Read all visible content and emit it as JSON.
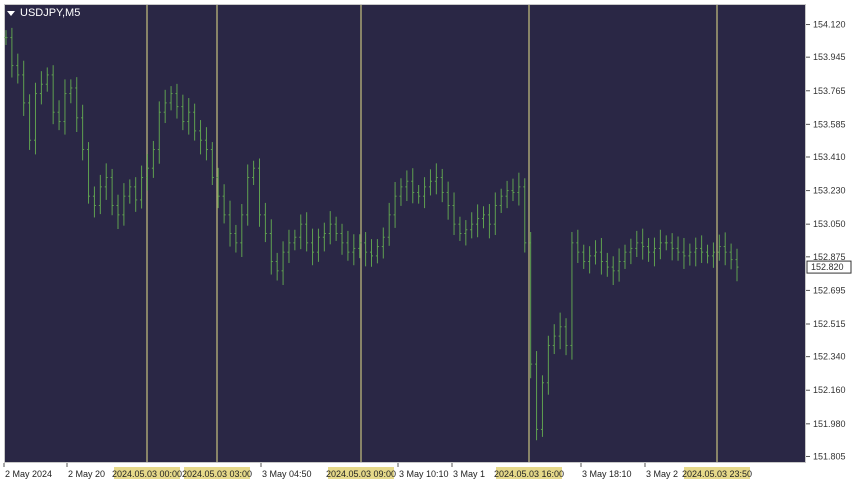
{
  "chart": {
    "symbol_label": "USDJPY,M5",
    "background": "#2a2745",
    "candle_color": "#5fa050",
    "vline_color": "#e6e28a",
    "label_bg": "#e6d98a"
  },
  "price_axis": {
    "ticks": [
      "154.120",
      "153.945",
      "153.765",
      "153.585",
      "153.410",
      "153.230",
      "153.050",
      "152.875",
      "152.695",
      "152.515",
      "152.340",
      "152.160",
      "151.980",
      "151.805"
    ],
    "current_price": "152.820"
  },
  "time_axis": {
    "labels": [
      "2 May 2024",
      "2 May 20",
      "3 May 04:50",
      "3 May 10:10",
      "3 May 1",
      "3 May 18:10",
      "3 May 2"
    ]
  },
  "vertical_lines": [
    {
      "label": "2024.05.03 00:00"
    },
    {
      "label": "2024.05.03 03:00"
    },
    {
      "label": "2024.05.03 09:00"
    },
    {
      "label": "2024.05.03 16:00"
    },
    {
      "label": "2024.05.03 23:50"
    }
  ],
  "chart_data": {
    "type": "line",
    "title": "USDJPY,M5",
    "ylim": [
      151.77,
      154.23
    ],
    "series": [
      {
        "values": [
          154.05,
          153.9,
          153.85,
          153.7,
          153.5,
          153.75,
          153.8,
          153.85,
          153.65,
          153.6,
          153.75,
          153.78,
          153.62,
          153.45,
          153.2,
          153.15,
          153.25,
          153.3,
          153.15,
          153.1,
          153.2,
          153.25,
          153.18,
          153.3,
          153.35,
          153.45,
          153.65,
          153.7,
          153.75,
          153.68,
          153.6,
          153.65,
          153.55,
          153.5,
          153.45,
          153.3,
          153.2,
          153.1,
          153.0,
          152.95,
          153.1,
          153.3,
          153.35,
          153.1,
          153.0,
          152.85,
          152.8,
          152.9,
          152.95,
          152.98,
          153.05,
          152.95,
          152.9,
          152.98,
          153.0,
          153.05,
          153.0,
          152.95,
          152.9,
          152.92,
          152.95,
          152.9,
          152.88,
          152.93,
          152.98,
          153.1,
          153.2,
          153.25,
          153.28,
          153.22,
          153.2,
          153.25,
          153.28,
          153.3,
          153.22,
          153.15,
          153.05,
          153.0,
          153.02,
          153.05,
          153.08,
          153.1,
          153.05,
          153.15,
          153.2,
          153.23,
          153.22,
          153.25,
          152.95,
          152.3,
          151.95,
          152.2,
          152.4,
          152.45,
          152.5,
          152.4,
          152.95,
          152.9,
          152.85,
          152.88,
          152.9,
          152.85,
          152.82,
          152.8,
          152.85,
          152.9,
          152.92,
          152.95,
          152.93,
          152.9,
          152.92,
          152.95,
          152.95,
          152.92,
          152.9,
          152.88,
          152.9,
          152.92,
          152.9,
          152.88,
          152.9,
          152.93,
          152.9,
          152.86,
          152.82
        ]
      }
    ]
  }
}
